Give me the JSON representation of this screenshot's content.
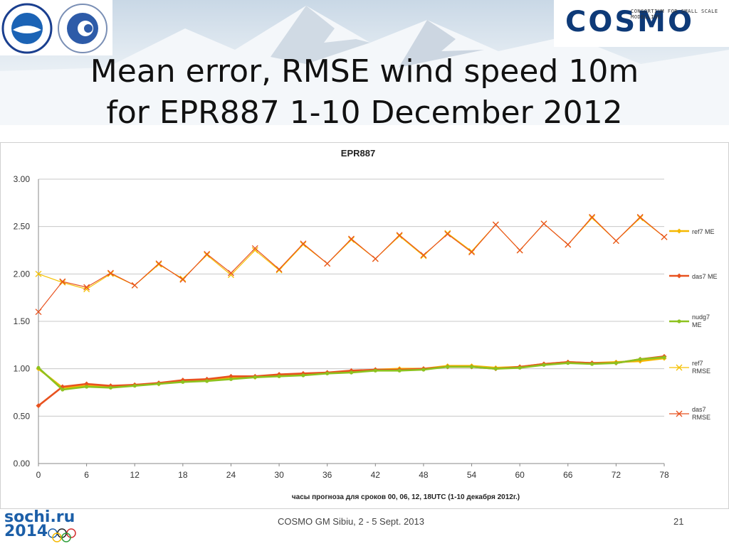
{
  "title": {
    "line1": "Mean error, RMSE wind speed 10m",
    "line2": "for EPR887 1-10 December 2012"
  },
  "logos": {
    "left_logo_1": "roshydromet-emblem",
    "left_logo_2": "hydromet-centre-emblem",
    "right_name": "COSMO",
    "right_subtitle": "CONSORTIUM FOR SMALL SCALE MODELLING",
    "sochi_line1": "sochi.ru",
    "sochi_line2": "2014"
  },
  "footer": {
    "text": "COSMO GM Sibiu, 2 - 5   Sept. 2013",
    "page": "21"
  },
  "chart_data": {
    "type": "line",
    "title": "EPR887",
    "xlabel": "часы прогноза для сроков 00, 06, 12, 18UTC (1-10 декабря 2012г.)",
    "ylabel": "",
    "xlim": [
      0,
      78
    ],
    "ylim": [
      0,
      3
    ],
    "x_ticks": [
      0,
      6,
      12,
      18,
      24,
      30,
      36,
      42,
      48,
      54,
      60,
      66,
      72,
      78
    ],
    "y_ticks": [
      0,
      0.5,
      1,
      1.5,
      2,
      2.5,
      3
    ],
    "y_tick_labels": [
      "0.00",
      "0.50",
      "1.00",
      "1.50",
      "2.00",
      "2.50",
      "3.00"
    ],
    "grid": true,
    "legend": "right",
    "x": [
      0,
      3,
      6,
      9,
      12,
      15,
      18,
      21,
      24,
      27,
      30,
      33,
      36,
      39,
      42,
      45,
      48,
      51,
      54,
      57,
      60,
      63,
      66,
      69,
      72,
      75,
      78
    ],
    "series": [
      {
        "name": "ref7 ME",
        "color": "#f5b800",
        "marker": "diamond",
        "values": [
          1.0,
          0.8,
          0.82,
          0.81,
          0.83,
          0.84,
          0.87,
          0.88,
          0.91,
          0.91,
          0.93,
          0.94,
          0.96,
          0.97,
          0.99,
          1.0,
          1.0,
          1.03,
          1.03,
          1.01,
          1.02,
          1.05,
          1.07,
          1.06,
          1.07,
          1.08,
          1.11
        ]
      },
      {
        "name": "das7 ME",
        "color": "#e8521f",
        "marker": "diamond",
        "values": [
          0.61,
          0.81,
          0.84,
          0.82,
          0.83,
          0.85,
          0.88,
          0.89,
          0.92,
          0.92,
          0.94,
          0.95,
          0.96,
          0.98,
          0.99,
          0.99,
          1.0,
          1.02,
          1.02,
          1.0,
          1.02,
          1.05,
          1.07,
          1.06,
          1.06,
          1.1,
          1.13
        ]
      },
      {
        "name": "nudg7 ME",
        "color": "#8dc21f",
        "marker": "circle",
        "values": [
          1.01,
          0.78,
          0.81,
          0.8,
          0.82,
          0.84,
          0.86,
          0.87,
          0.89,
          0.91,
          0.92,
          0.93,
          0.95,
          0.96,
          0.98,
          0.98,
          0.99,
          1.02,
          1.02,
          1.0,
          1.01,
          1.04,
          1.06,
          1.05,
          1.06,
          1.1,
          1.12
        ]
      },
      {
        "name": "ref7 RMSE",
        "color": "#f5c000",
        "marker": "x",
        "values": [
          2.0,
          1.91,
          1.84,
          2.0,
          1.88,
          2.1,
          1.95,
          2.2,
          1.99,
          2.25,
          2.04,
          2.31,
          2.11,
          2.36,
          2.16,
          2.4,
          2.19,
          2.43,
          2.24,
          2.52,
          2.25,
          2.53,
          2.31,
          2.59,
          2.35,
          2.59,
          2.39
        ]
      },
      {
        "name": "das7 RMSE",
        "color": "#e8521f",
        "marker": "x",
        "values": [
          1.6,
          1.92,
          1.86,
          2.01,
          1.88,
          2.11,
          1.94,
          2.21,
          2.01,
          2.27,
          2.05,
          2.32,
          2.11,
          2.37,
          2.16,
          2.41,
          2.2,
          2.42,
          2.23,
          2.52,
          2.25,
          2.53,
          2.31,
          2.6,
          2.35,
          2.6,
          2.39
        ]
      }
    ]
  }
}
